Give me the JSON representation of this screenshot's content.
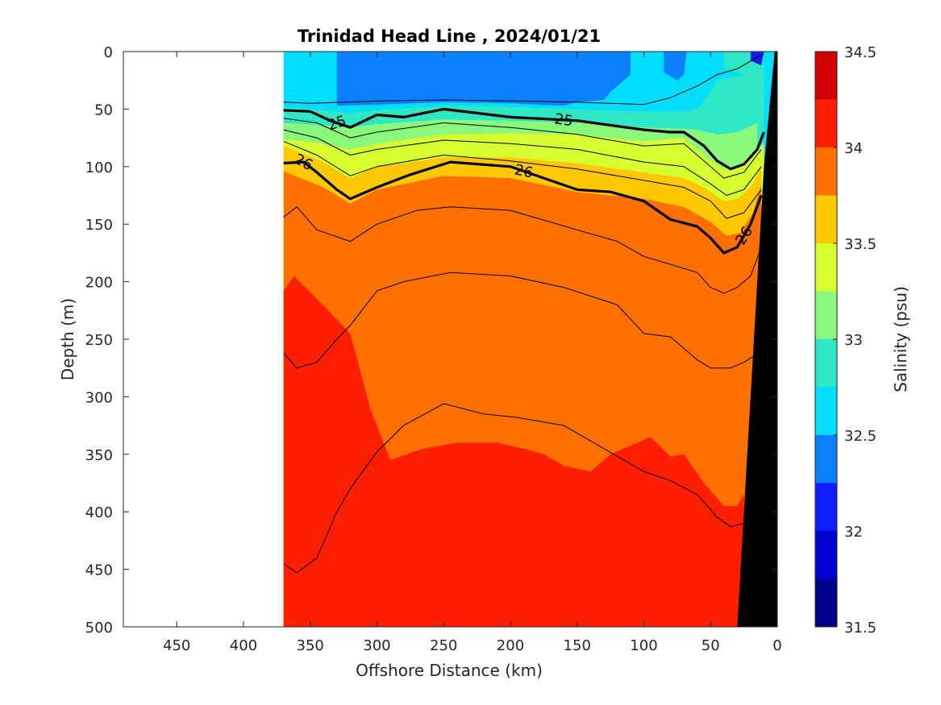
{
  "chart_data": {
    "type": "contour",
    "title": "Trinidad Head Line , 2024/01/21",
    "xlabel": "Offshore Distance (km)",
    "ylabel": "Depth (m)",
    "xlim": [
      490,
      0
    ],
    "ylim": [
      0,
      500
    ],
    "x_direction": "reversed",
    "y_direction": "reversed",
    "x_ticks": [
      450,
      400,
      350,
      300,
      250,
      200,
      150,
      100,
      50,
      0
    ],
    "x_tick_labels": [
      "450",
      "400",
      "350",
      "300",
      "250",
      "200",
      "150",
      "100",
      "50",
      "0"
    ],
    "y_ticks": [
      0,
      50,
      100,
      150,
      200,
      250,
      300,
      350,
      400,
      450,
      500
    ],
    "y_tick_labels": [
      "0",
      "50",
      "100",
      "150",
      "200",
      "250",
      "300",
      "350",
      "400",
      "450",
      "500"
    ],
    "data_extent_km": [
      370,
      0
    ],
    "colorbar": {
      "label": "Salinity (psu)",
      "range": [
        31.5,
        34.5
      ],
      "tick_values": [
        31.5,
        32,
        32.5,
        33,
        33.5,
        34,
        34.5
      ],
      "tick_labels": [
        "31.5",
        "32",
        "32.5",
        "33",
        "33.5",
        "34",
        "34.5"
      ],
      "levels": [
        31.5,
        31.75,
        32.0,
        32.25,
        32.5,
        32.75,
        33.0,
        33.25,
        33.5,
        33.75,
        34.0,
        34.25,
        34.5
      ],
      "colors": [
        "#00008f",
        "#0000d0",
        "#0f1eff",
        "#0b80ff",
        "#00ddff",
        "#2ee8c5",
        "#8af87b",
        "#d7ff30",
        "#ffc800",
        "#ff7000",
        "#ff1e00",
        "#cf0000"
      ]
    },
    "salinity_boundaries": [
      {
        "level": "32.5/32.75",
        "points": [
          [
            370,
            48
          ],
          [
            340,
            51
          ],
          [
            320,
            53
          ],
          [
            300,
            51
          ],
          [
            250,
            47
          ],
          [
            200,
            48
          ],
          [
            150,
            50
          ],
          [
            100,
            52
          ],
          [
            70,
            52
          ],
          [
            60,
            50
          ],
          [
            50,
            35
          ],
          [
            45,
            25
          ],
          [
            25,
            20
          ],
          [
            10,
            25
          ]
        ]
      },
      {
        "level": "32.75/33",
        "points": [
          [
            370,
            62
          ],
          [
            340,
            64
          ],
          [
            320,
            66
          ],
          [
            300,
            63
          ],
          [
            250,
            59
          ],
          [
            200,
            60
          ],
          [
            150,
            62
          ],
          [
            100,
            66
          ],
          [
            70,
            67
          ],
          [
            60,
            68
          ],
          [
            45,
            72
          ],
          [
            30,
            70
          ],
          [
            15,
            62
          ]
        ]
      },
      {
        "level": "33/33.25",
        "points": [
          [
            370,
            76
          ],
          [
            340,
            80
          ],
          [
            320,
            85
          ],
          [
            300,
            80
          ],
          [
            250,
            72
          ],
          [
            200,
            71
          ],
          [
            150,
            72
          ],
          [
            100,
            78
          ],
          [
            70,
            75
          ],
          [
            60,
            85
          ],
          [
            50,
            95
          ],
          [
            40,
            102
          ],
          [
            30,
            100
          ],
          [
            20,
            90
          ],
          [
            10,
            80
          ]
        ]
      },
      {
        "level": "33.25/33.5",
        "points": [
          [
            370,
            82
          ],
          [
            340,
            96
          ],
          [
            320,
            110
          ],
          [
            300,
            100
          ],
          [
            250,
            92
          ],
          [
            200,
            92
          ],
          [
            150,
            97
          ],
          [
            100,
            105
          ],
          [
            70,
            110
          ],
          [
            55,
            118
          ],
          [
            40,
            130
          ],
          [
            30,
            128
          ],
          [
            20,
            118
          ],
          [
            12,
            100
          ]
        ]
      },
      {
        "level": "33.5/33.75",
        "points": [
          [
            370,
            104
          ],
          [
            340,
            118
          ],
          [
            320,
            132
          ],
          [
            300,
            120
          ],
          [
            250,
            108
          ],
          [
            200,
            110
          ],
          [
            150,
            122
          ],
          [
            100,
            128
          ],
          [
            70,
            135
          ],
          [
            50,
            148
          ],
          [
            38,
            160
          ],
          [
            28,
            158
          ],
          [
            18,
            140
          ],
          [
            12,
            115
          ]
        ]
      },
      {
        "level": "33.75/34",
        "points": [
          [
            370,
            105
          ],
          [
            340,
            125
          ],
          [
            320,
            150
          ],
          [
            300,
            144
          ],
          [
            250,
            134
          ],
          [
            200,
            133
          ],
          [
            150,
            142
          ],
          [
            100,
            160
          ],
          [
            70,
            165
          ],
          [
            50,
            180
          ],
          [
            40,
            190
          ],
          [
            30,
            188
          ],
          [
            20,
            175
          ],
          [
            10,
            160
          ]
        ]
      },
      {
        "level": "34/34.25",
        "points": [
          [
            370,
            208
          ],
          [
            362,
            195
          ],
          [
            345,
            215
          ],
          [
            320,
            245
          ],
          [
            305,
            310
          ],
          [
            290,
            355
          ],
          [
            265,
            345
          ],
          [
            240,
            340
          ],
          [
            210,
            340
          ],
          [
            190,
            345
          ],
          [
            175,
            350
          ],
          [
            160,
            360
          ],
          [
            140,
            365
          ],
          [
            125,
            350
          ],
          [
            95,
            335
          ],
          [
            80,
            352
          ],
          [
            70,
            350
          ],
          [
            55,
            375
          ],
          [
            40,
            395
          ],
          [
            30,
            395
          ],
          [
            25,
            385
          ]
        ]
      }
    ],
    "density_contours": [
      {
        "label": "",
        "bold": false,
        "points": [
          [
            370,
            44
          ],
          [
            350,
            45
          ],
          [
            300,
            43
          ],
          [
            250,
            42
          ],
          [
            200,
            43
          ],
          [
            150,
            44
          ],
          [
            100,
            46
          ],
          [
            80,
            40
          ],
          [
            60,
            30
          ],
          [
            45,
            20
          ],
          [
            30,
            15
          ],
          [
            15,
            5
          ],
          [
            10,
            2
          ]
        ]
      },
      {
        "label": "25",
        "bold": true,
        "points": [
          [
            370,
            51
          ],
          [
            350,
            52
          ],
          [
            335,
            60
          ],
          [
            320,
            66
          ],
          [
            300,
            55
          ],
          [
            280,
            57
          ],
          [
            250,
            50
          ],
          [
            200,
            57
          ],
          [
            150,
            60
          ],
          [
            100,
            68
          ],
          [
            80,
            70
          ],
          [
            70,
            70
          ],
          [
            55,
            82
          ],
          [
            45,
            95
          ],
          [
            35,
            102
          ],
          [
            25,
            98
          ],
          [
            15,
            85
          ],
          [
            10,
            70
          ]
        ]
      },
      {
        "label": "",
        "bold": false,
        "points": [
          [
            370,
            58
          ],
          [
            345,
            62
          ],
          [
            320,
            75
          ],
          [
            300,
            70
          ],
          [
            250,
            62
          ],
          [
            200,
            66
          ],
          [
            150,
            72
          ],
          [
            100,
            82
          ],
          [
            70,
            80
          ],
          [
            55,
            95
          ],
          [
            40,
            110
          ],
          [
            25,
            105
          ],
          [
            12,
            85
          ]
        ]
      },
      {
        "label": "",
        "bold": false,
        "points": [
          [
            370,
            68
          ],
          [
            345,
            75
          ],
          [
            320,
            90
          ],
          [
            300,
            85
          ],
          [
            250,
            77
          ],
          [
            200,
            80
          ],
          [
            150,
            85
          ],
          [
            100,
            96
          ],
          [
            70,
            100
          ],
          [
            50,
            115
          ],
          [
            38,
            125
          ],
          [
            25,
            120
          ],
          [
            12,
            100
          ]
        ]
      },
      {
        "label": "",
        "bold": false,
        "points": [
          [
            370,
            78
          ],
          [
            345,
            90
          ],
          [
            320,
            108
          ],
          [
            300,
            100
          ],
          [
            250,
            90
          ],
          [
            200,
            95
          ],
          [
            150,
            102
          ],
          [
            100,
            112
          ],
          [
            70,
            118
          ],
          [
            50,
            130
          ],
          [
            38,
            145
          ],
          [
            25,
            140
          ],
          [
            12,
            120
          ]
        ]
      },
      {
        "label": "26",
        "bold": true,
        "points": [
          [
            370,
            97
          ],
          [
            355,
            96
          ],
          [
            345,
            105
          ],
          [
            330,
            120
          ],
          [
            320,
            128
          ],
          [
            300,
            118
          ],
          [
            275,
            107
          ],
          [
            245,
            96
          ],
          [
            200,
            100
          ],
          [
            150,
            120
          ],
          [
            125,
            122
          ],
          [
            100,
            130
          ],
          [
            80,
            146
          ],
          [
            60,
            152
          ],
          [
            50,
            162
          ],
          [
            40,
            175
          ],
          [
            30,
            170
          ],
          [
            20,
            150
          ],
          [
            12,
            125
          ]
        ]
      },
      {
        "label": "",
        "bold": false,
        "points": [
          [
            370,
            144
          ],
          [
            360,
            135
          ],
          [
            345,
            155
          ],
          [
            320,
            165
          ],
          [
            300,
            150
          ],
          [
            270,
            138
          ],
          [
            245,
            135
          ],
          [
            200,
            138
          ],
          [
            150,
            155
          ],
          [
            120,
            165
          ],
          [
            100,
            178
          ],
          [
            80,
            185
          ],
          [
            60,
            192
          ],
          [
            50,
            205
          ],
          [
            40,
            210
          ],
          [
            30,
            205
          ],
          [
            20,
            195
          ],
          [
            12,
            170
          ]
        ]
      },
      {
        "label": "",
        "bold": false,
        "points": [
          [
            370,
            262
          ],
          [
            360,
            275
          ],
          [
            345,
            270
          ],
          [
            330,
            250
          ],
          [
            320,
            238
          ],
          [
            300,
            208
          ],
          [
            280,
            200
          ],
          [
            245,
            192
          ],
          [
            200,
            195
          ],
          [
            160,
            205
          ],
          [
            120,
            220
          ],
          [
            100,
            245
          ],
          [
            80,
            248
          ],
          [
            60,
            268
          ],
          [
            50,
            275
          ],
          [
            35,
            275
          ],
          [
            25,
            270
          ],
          [
            18,
            265
          ]
        ]
      },
      {
        "label": "",
        "bold": false,
        "points": [
          [
            370,
            445
          ],
          [
            360,
            453
          ],
          [
            345,
            440
          ],
          [
            330,
            400
          ],
          [
            320,
            380
          ],
          [
            300,
            348
          ],
          [
            280,
            325
          ],
          [
            250,
            306
          ],
          [
            220,
            315
          ],
          [
            195,
            318
          ],
          [
            160,
            325
          ],
          [
            130,
            345
          ],
          [
            100,
            365
          ],
          [
            80,
            373
          ],
          [
            60,
            385
          ],
          [
            45,
            405
          ],
          [
            35,
            413
          ],
          [
            25,
            410
          ]
        ]
      }
    ]
  }
}
